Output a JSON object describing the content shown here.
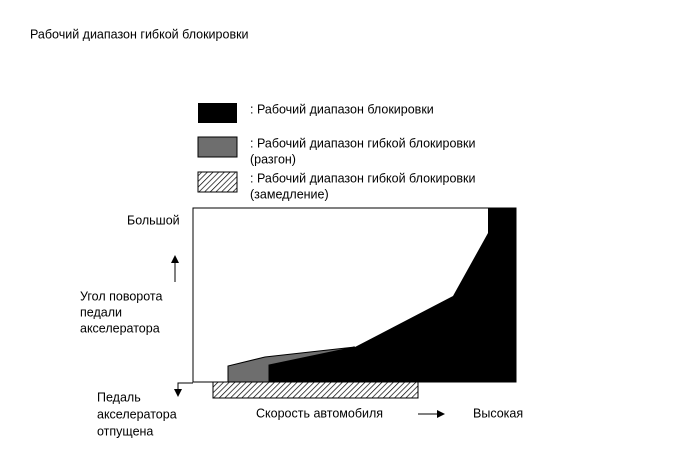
{
  "title": "Рабочий диапазон гибкой блокировки",
  "legend": [
    {
      "lines": [
        ": Рабочий диапазон блокировки"
      ]
    },
    {
      "lines": [
        ": Рабочий диапазон гибкой блокировки",
        "(разгон)"
      ]
    },
    {
      "lines": [
        ": Рабочий диапазон гибкой блокировки",
        "(замедление)"
      ]
    }
  ],
  "y_axis": {
    "top_label": "Большой",
    "label_lines": [
      "Угол поворота",
      "педали",
      "акселератора"
    ],
    "bottom_label_lines": [
      "Педаль",
      "акселератора",
      "отпущена"
    ]
  },
  "x_axis": {
    "label": "Скорость автомобиля",
    "end_label": "Высокая"
  }
}
